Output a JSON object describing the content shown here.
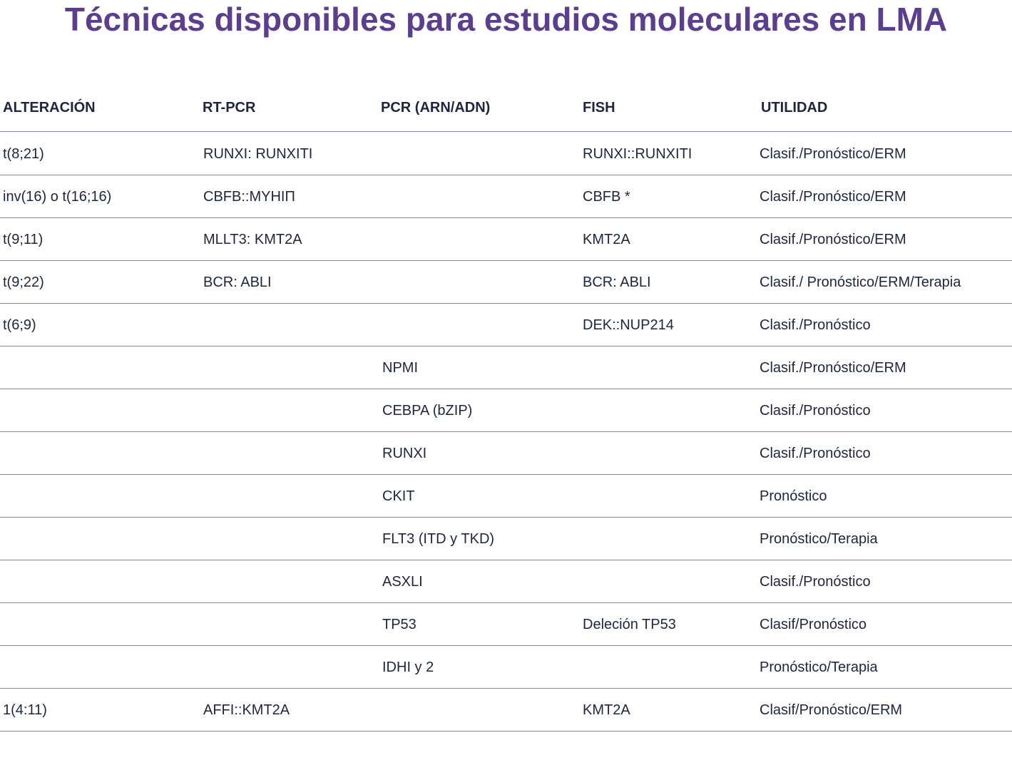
{
  "header": {
    "title": "Técnicas disponibles para estudios moleculares en LMA"
  },
  "table": {
    "columns": [
      "ALTERACIÓN",
      "RT-PCR",
      "PCR (ARN/ADN)",
      "FISH",
      "UTILIDAD"
    ],
    "rows": [
      [
        "t(8;21)",
        "RUNXI: RUNXITI",
        null,
        "RUNXI::RUNXITI",
        "Clasif./Pronóstico/ERM"
      ],
      [
        "inv(16) o t(16;16)",
        "CBFB::MYHIП",
        null,
        "CBFB *",
        "Clasif./Pronóstico/ERM"
      ],
      [
        "t(9;11)",
        "MLLT3: KMT2A",
        null,
        "KMT2A",
        "Clasif./Pronóstico/ERM"
      ],
      [
        "t(9;22)",
        "BCR: ABLI",
        null,
        "BCR: ABLI",
        "Clasif./ Pronóstico/ERM/Terapia"
      ],
      [
        "t(6;9)",
        null,
        null,
        "DEK::NUP214",
        "Clasif./Pronóstico"
      ],
      [
        null,
        null,
        "NPMI",
        null,
        "Clasif./Pronóstico/ERM"
      ],
      [
        null,
        null,
        "CEBPA (bZIP)",
        null,
        "Clasif./Pronóstico"
      ],
      [
        null,
        null,
        "RUNXI",
        null,
        "Clasif./Pronóstico"
      ],
      [
        null,
        null,
        "CKIT",
        null,
        "Pronóstico"
      ],
      [
        null,
        null,
        "FLT3 (ITD y TKD)",
        null,
        "Pronóstico/Terapia"
      ],
      [
        null,
        null,
        "ASXLI",
        null,
        "Clasif./Pronóstico"
      ],
      [
        null,
        null,
        "TP53",
        "Deleción TP53",
        "Clasif/Pronóstico"
      ],
      [
        null,
        null,
        "IDHI y 2",
        null,
        "Pronóstico/Terapia"
      ],
      [
        "1(4:11)",
        "AFFI::KMT2A",
        null,
        "KMT2A",
        "Clasif/Pronóstico/ERM"
      ]
    ]
  }
}
